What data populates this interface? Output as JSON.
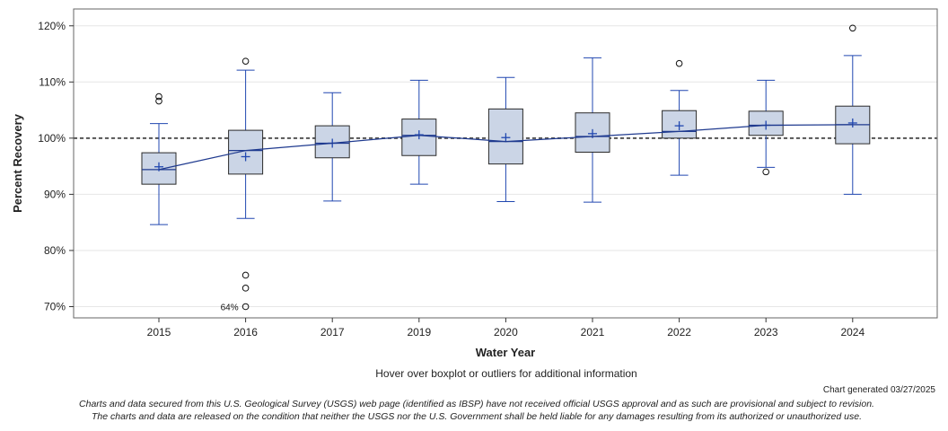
{
  "chart_data": {
    "type": "boxplot",
    "ylabel": "Percent Recovery",
    "xlabel": "Water Year",
    "ylim": [
      68,
      123
    ],
    "yticks": [
      70,
      80,
      90,
      100,
      110,
      120
    ],
    "ytick_labels": [
      "70%",
      "80%",
      "90%",
      "100%",
      "110%",
      "120%"
    ],
    "reference_line": 100,
    "categories": [
      "2015",
      "2016",
      "2017",
      "2019",
      "2020",
      "2021",
      "2022",
      "2023",
      "2024"
    ],
    "boxes": [
      {
        "year": "2015",
        "whisker_low": 84.6,
        "q1": 91.8,
        "median": 94.4,
        "q3": 97.4,
        "whisker_high": 102.6,
        "mean": 94.9,
        "outliers": [
          106.6,
          107.4
        ]
      },
      {
        "year": "2016",
        "whisker_low": 85.7,
        "q1": 93.6,
        "median": 97.8,
        "q3": 101.4,
        "whisker_high": 112.1,
        "mean": 96.7,
        "outliers": [
          113.7,
          75.6,
          73.3,
          70.0
        ]
      },
      {
        "year": "2017",
        "whisker_low": 88.8,
        "q1": 96.5,
        "median": 99.1,
        "q3": 102.2,
        "whisker_high": 108.1,
        "mean": 99.1,
        "outliers": []
      },
      {
        "year": "2019",
        "whisker_low": 91.8,
        "q1": 96.9,
        "median": 100.5,
        "q3": 103.4,
        "whisker_high": 110.3,
        "mean": 100.6,
        "outliers": []
      },
      {
        "year": "2020",
        "whisker_low": 88.7,
        "q1": 95.4,
        "median": 99.4,
        "q3": 105.2,
        "whisker_high": 110.8,
        "mean": 100.1,
        "outliers": []
      },
      {
        "year": "2021",
        "whisker_low": 88.6,
        "q1": 97.5,
        "median": 100.3,
        "q3": 104.5,
        "whisker_high": 114.3,
        "mean": 100.8,
        "outliers": []
      },
      {
        "year": "2022",
        "whisker_low": 93.4,
        "q1": 100.0,
        "median": 101.2,
        "q3": 104.9,
        "whisker_high": 108.5,
        "mean": 102.2,
        "outliers": [
          113.3
        ]
      },
      {
        "year": "2023",
        "whisker_low": 94.8,
        "q1": 100.5,
        "median": 102.3,
        "q3": 104.8,
        "whisker_high": 110.3,
        "mean": 102.3,
        "outliers": [
          94.0
        ]
      },
      {
        "year": "2024",
        "whisker_low": 90.0,
        "q1": 99.0,
        "median": 102.4,
        "q3": 105.7,
        "whisker_high": 114.7,
        "mean": 102.7,
        "outliers": [
          119.6
        ]
      }
    ],
    "annotations": [
      {
        "year": "2016",
        "value": 70.0,
        "label": "64%"
      }
    ],
    "colors": {
      "box_fill": "#cbd5e6",
      "box_edge": "#2a2a2a",
      "whisker": "#2047b0",
      "median_line": "#1f3a8f",
      "grid": "#e6e6e6",
      "reference": "#555555"
    }
  },
  "footer": {
    "hover_note": "Hover over boxplot or outliers for additional information",
    "generated": "Chart generated 03/27/2025",
    "disclaimer_line1": "Charts and data secured from this U.S. Geological Survey (USGS) web page (identified as IBSP) have not received official USGS approval and as such are provisional and subject to revision.",
    "disclaimer_line2": "The charts and data are released on the condition that neither the USGS nor the U.S. Government shall be held liable for any damages resulting from its authorized or unauthorized use."
  }
}
